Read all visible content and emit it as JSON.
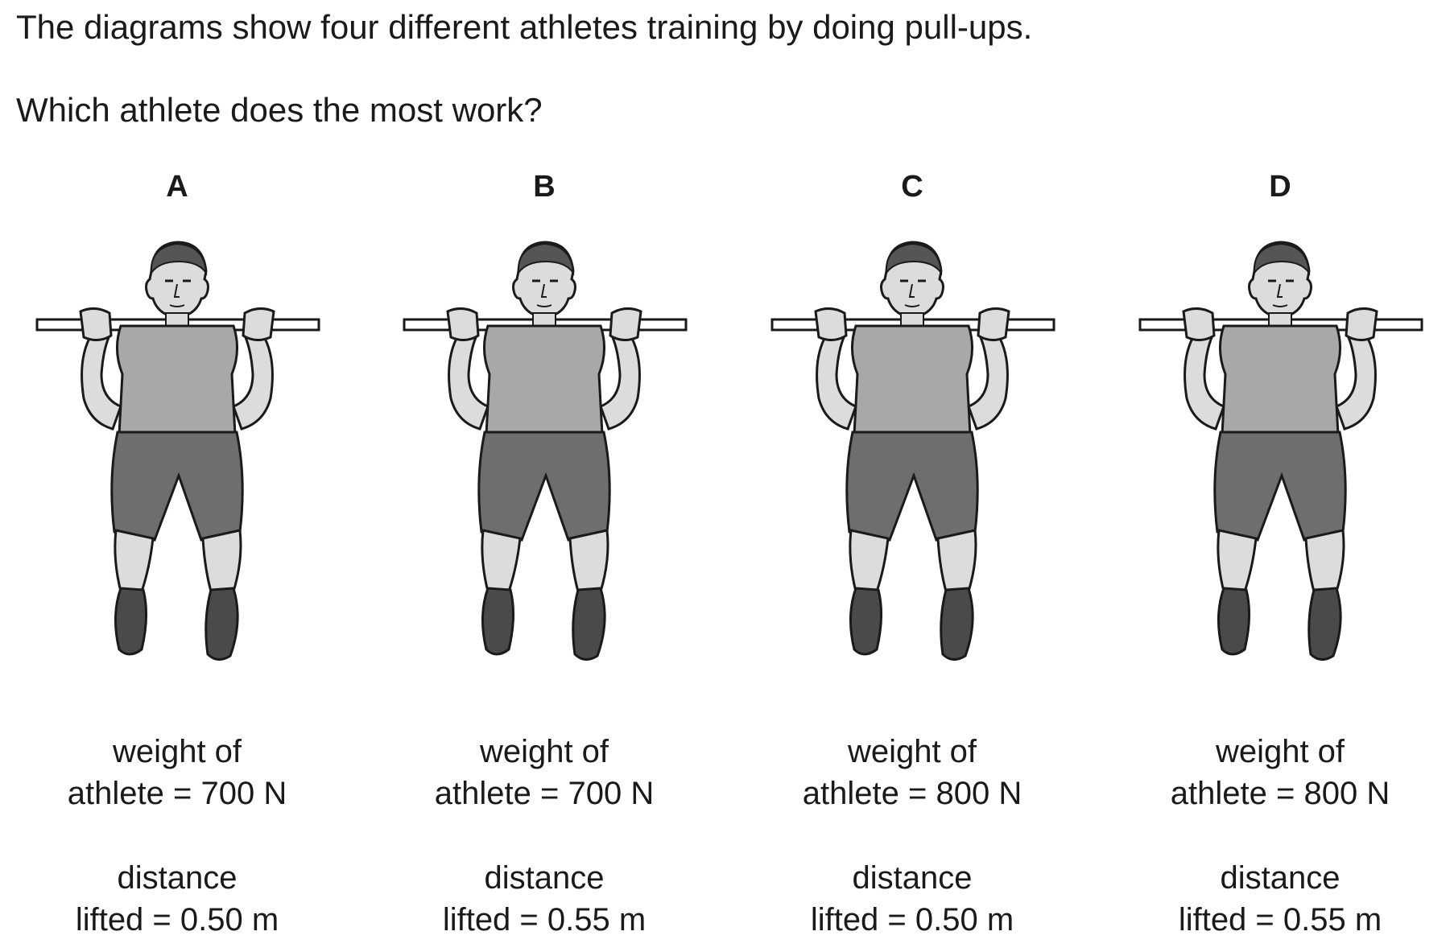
{
  "question": {
    "line1": "The diagrams show four different athletes training by doing pull-ups.",
    "line2": "Which athlete does the most work?"
  },
  "options": [
    {
      "letter": "A",
      "weight_line1": "weight of",
      "weight_line2": "athlete = 700 N",
      "distance_line1": "distance",
      "distance_line2": "lifted = 0.50 m",
      "weight_N": 700,
      "distance_m": 0.5
    },
    {
      "letter": "B",
      "weight_line1": "weight of",
      "weight_line2": "athlete = 700 N",
      "distance_line1": "distance",
      "distance_line2": "lifted = 0.55 m",
      "weight_N": 700,
      "distance_m": 0.55
    },
    {
      "letter": "C",
      "weight_line1": "weight of",
      "weight_line2": "athlete = 800 N",
      "distance_line1": "distance",
      "distance_line2": "lifted = 0.50 m",
      "weight_N": 800,
      "distance_m": 0.5
    },
    {
      "letter": "D",
      "weight_line1": "weight of",
      "weight_line2": "athlete = 800 N",
      "distance_line1": "distance",
      "distance_line2": "lifted = 0.55 m",
      "weight_N": 800,
      "distance_m": 0.55
    }
  ],
  "colors": {
    "outline": "#1a1a1a",
    "skin": "#dcdcdc",
    "shirt": "#a8a8a8",
    "shorts": "#6e6e6e",
    "shoes": "#4a4a4a",
    "hair": "#555555",
    "bar": "#ffffff"
  }
}
